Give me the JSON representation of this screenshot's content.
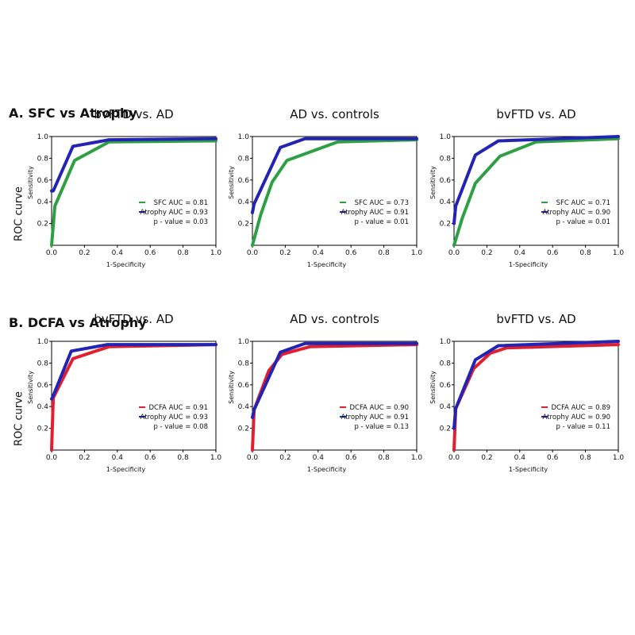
{
  "sections": [
    {
      "title": "A. SFC vs Atrophy",
      "row_ylabel": "ROC curve"
    },
    {
      "title": "B. DCFA vs Atrophy",
      "row_ylabel": "ROC curve"
    }
  ],
  "colors": {
    "sfc": "#2ea043",
    "dcfa": "#e02030",
    "atrophy": "#2323b4",
    "axis": "#000000"
  },
  "chart_data": [
    {
      "type": "line",
      "title": "bvFTD vs. AD",
      "xlabel": "1-Specificity",
      "ylabel": "Sensitivity",
      "xlim": [
        0,
        1.0
      ],
      "ylim": [
        0,
        1.0
      ],
      "xticks": [
        "0.0",
        "0.2",
        "0.4",
        "0.6",
        "0.8",
        "1.0"
      ],
      "yticks": [
        "0.2",
        "0.4",
        "0.6",
        "0.8",
        "1.0"
      ],
      "legend_position": "bottom-right",
      "p_value": "p - value = 0.03",
      "series": [
        {
          "name": "SFC AUC = 0.81",
          "color_key": "sfc",
          "x": [
            0,
            0.02,
            0.14,
            0.35,
            1.0
          ],
          "y": [
            0,
            0.36,
            0.78,
            0.95,
            0.96
          ]
        },
        {
          "name": "Atrophy AUC = 0.93",
          "color_key": "atrophy",
          "x": [
            0,
            0.01,
            0.13,
            0.35,
            1.0
          ],
          "y": [
            0.5,
            0.5,
            0.91,
            0.97,
            0.98
          ]
        }
      ]
    },
    {
      "type": "line",
      "title": "AD vs. controls",
      "xlabel": "1-Specificity",
      "ylabel": "Sensitivity",
      "xlim": [
        0,
        1.0
      ],
      "ylim": [
        0,
        1.0
      ],
      "xticks": [
        "0.0",
        "0.2",
        "0.4",
        "0.6",
        "0.8",
        "1.0"
      ],
      "yticks": [
        "0.2",
        "0.4",
        "0.6",
        "0.8",
        "1.0"
      ],
      "legend_position": "bottom-right",
      "p_value": "p - value = 0.01",
      "series": [
        {
          "name": "SFC AUC = 0.73",
          "color_key": "sfc",
          "x": [
            0,
            0.05,
            0.12,
            0.21,
            0.52,
            1.0
          ],
          "y": [
            0,
            0.28,
            0.58,
            0.78,
            0.95,
            0.97
          ]
        },
        {
          "name": "Atrophy AUC = 0.91",
          "color_key": "atrophy",
          "x": [
            0,
            0.01,
            0.17,
            0.32,
            1.0
          ],
          "y": [
            0.3,
            0.38,
            0.9,
            0.98,
            0.98
          ]
        }
      ]
    },
    {
      "type": "line",
      "title": "bvFTD vs. AD",
      "xlabel": "1-Specificity",
      "ylabel": "Sensitivity",
      "xlim": [
        0,
        1.0
      ],
      "ylim": [
        0,
        1.0
      ],
      "xticks": [
        "0.0",
        "0.2",
        "0.4",
        "0.6",
        "0.8",
        "1.0"
      ],
      "yticks": [
        "0.2",
        "0.4",
        "0.6",
        "0.8",
        "1.0"
      ],
      "legend_position": "bottom-right",
      "p_value": "p - value = 0.01",
      "series": [
        {
          "name": "SFC AUC = 0.71",
          "color_key": "sfc",
          "x": [
            0,
            0.05,
            0.13,
            0.28,
            0.5,
            1.0
          ],
          "y": [
            0,
            0.25,
            0.57,
            0.82,
            0.95,
            0.98
          ]
        },
        {
          "name": "Atrophy AUC = 0.90",
          "color_key": "atrophy",
          "x": [
            0,
            0.01,
            0.13,
            0.27,
            1.0
          ],
          "y": [
            0.2,
            0.36,
            0.83,
            0.96,
            1.0
          ]
        }
      ]
    },
    {
      "type": "line",
      "title": "bvFTD vs. AD",
      "xlabel": "1-Specificity",
      "ylabel": "Sensitivity",
      "xlim": [
        0,
        1.0
      ],
      "ylim": [
        0,
        1.0
      ],
      "xticks": [
        "0.0",
        "0.2",
        "0.4",
        "0.6",
        "0.8",
        "1.0"
      ],
      "yticks": [
        "0.2",
        "0.4",
        "0.6",
        "0.8",
        "1.0"
      ],
      "legend_position": "bottom-right",
      "p_value": "p - value = 0.08",
      "series": [
        {
          "name": "DCFA AUC = 0.91",
          "color_key": "dcfa",
          "x": [
            0,
            0.01,
            0.13,
            0.35,
            1.0
          ],
          "y": [
            0,
            0.48,
            0.84,
            0.95,
            0.97
          ]
        },
        {
          "name": "Atrophy AUC = 0.93",
          "color_key": "atrophy",
          "x": [
            0,
            0.01,
            0.12,
            0.34,
            1.0
          ],
          "y": [
            0.47,
            0.5,
            0.91,
            0.97,
            0.97
          ]
        }
      ]
    },
    {
      "type": "line",
      "title": "AD vs. controls",
      "xlabel": "1-Specificity",
      "ylabel": "Sensitivity",
      "xlim": [
        0,
        1.0
      ],
      "ylim": [
        0,
        1.0
      ],
      "xticks": [
        "0.0",
        "0.2",
        "0.4",
        "0.6",
        "0.8",
        "1.0"
      ],
      "yticks": [
        "0.2",
        "0.4",
        "0.6",
        "0.8",
        "1.0"
      ],
      "legend_position": "bottom-right",
      "p_value": "p - value = 0.13",
      "series": [
        {
          "name": "DCFA AUC = 0.90",
          "color_key": "dcfa",
          "x": [
            0,
            0.01,
            0.1,
            0.18,
            0.35,
            1.0
          ],
          "y": [
            0,
            0.37,
            0.73,
            0.88,
            0.95,
            0.97
          ]
        },
        {
          "name": "Atrophy AUC = 0.91",
          "color_key": "atrophy",
          "x": [
            0,
            0.01,
            0.17,
            0.32,
            1.0
          ],
          "y": [
            0.3,
            0.37,
            0.9,
            0.98,
            0.98
          ]
        }
      ]
    },
    {
      "type": "line",
      "title": "bvFTD vs. AD",
      "xlabel": "1-Specificity",
      "ylabel": "Sensitivity",
      "xlim": [
        0,
        1.0
      ],
      "ylim": [
        0,
        1.0
      ],
      "xticks": [
        "0.0",
        "0.2",
        "0.4",
        "0.6",
        "0.8",
        "1.0"
      ],
      "yticks": [
        "0.2",
        "0.4",
        "0.6",
        "0.8",
        "1.0"
      ],
      "legend_position": "bottom-right",
      "p_value": "p - value = 0.11",
      "series": [
        {
          "name": "DCFA AUC = 0.89",
          "color_key": "dcfa",
          "x": [
            0,
            0.01,
            0.12,
            0.22,
            0.32,
            1.0
          ],
          "y": [
            0,
            0.38,
            0.75,
            0.89,
            0.94,
            0.97
          ]
        },
        {
          "name": "Atrophy AUC = 0.90",
          "color_key": "atrophy",
          "x": [
            0,
            0.01,
            0.13,
            0.27,
            1.0
          ],
          "y": [
            0.2,
            0.38,
            0.83,
            0.96,
            1.0
          ]
        }
      ]
    }
  ]
}
